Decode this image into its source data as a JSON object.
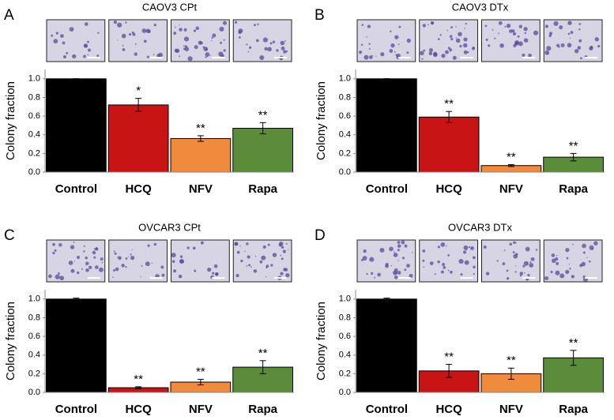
{
  "chart_data": [
    {
      "type": "bar",
      "label": "A",
      "title": "CAOV3 CPt",
      "ylabel": "Colony fraction",
      "categories": [
        "Control",
        "HCQ",
        "NFV",
        "Rapa"
      ],
      "values": [
        1.0,
        0.72,
        0.36,
        0.47
      ],
      "errors": [
        0,
        0.07,
        0.03,
        0.06
      ],
      "annotations": [
        null,
        "*",
        "**",
        "**"
      ],
      "colors": [
        "#000000",
        "#c81414",
        "#f08a3c",
        "#5b8c3a"
      ],
      "ylim": [
        0,
        1.1
      ],
      "yticks": [
        {
          "value": 0,
          "label": "0.0"
        },
        {
          "value": 0.2,
          "label": "0.2"
        },
        {
          "value": 0.4,
          "label": "0.4"
        },
        {
          "value": 0.6,
          "label": "0.6"
        },
        {
          "value": 0.8,
          "label": "0.8"
        },
        {
          "value": 1,
          "label": "1.0"
        }
      ]
    },
    {
      "type": "bar",
      "label": "B",
      "title": "CAOV3 DTx",
      "ylabel": "Colony fraction",
      "categories": [
        "Control",
        "HCQ",
        "NFV",
        "Rapa"
      ],
      "values": [
        1.0,
        0.59,
        0.07,
        0.16
      ],
      "errors": [
        0,
        0.06,
        0.01,
        0.04
      ],
      "annotations": [
        null,
        "**",
        "**",
        "**"
      ],
      "colors": [
        "#000000",
        "#c81414",
        "#f08a3c",
        "#5b8c3a"
      ],
      "ylim": [
        0,
        1.1
      ],
      "yticks": [
        {
          "value": 0,
          "label": "0.0"
        },
        {
          "value": 0.2,
          "label": "0.2"
        },
        {
          "value": 0.4,
          "label": "0.4"
        },
        {
          "value": 0.6,
          "label": "0.6"
        },
        {
          "value": 0.8,
          "label": "0.8"
        },
        {
          "value": 1,
          "label": "1.0"
        }
      ]
    },
    {
      "type": "bar",
      "label": "C",
      "title": "OVCAR3 CPt",
      "ylabel": "Colony fraction",
      "categories": [
        "Control",
        "HCQ",
        "NFV",
        "Rapa"
      ],
      "values": [
        1.0,
        0.05,
        0.11,
        0.27
      ],
      "errors": [
        0.01,
        0.01,
        0.03,
        0.07
      ],
      "annotations": [
        null,
        "**",
        "**",
        "**"
      ],
      "colors": [
        "#000000",
        "#c81414",
        "#f08a3c",
        "#5b8c3a"
      ],
      "ylim": [
        0,
        1.1
      ],
      "yticks": [
        {
          "value": 0,
          "label": "0.0"
        },
        {
          "value": 0.2,
          "label": "0.2"
        },
        {
          "value": 0.4,
          "label": "0.4"
        },
        {
          "value": 0.6,
          "label": "0.6"
        },
        {
          "value": 0.8,
          "label": "0.8"
        },
        {
          "value": 1,
          "label": "1.0"
        }
      ]
    },
    {
      "type": "bar",
      "label": "D",
      "title": "OVCAR3 DTx",
      "ylabel": "Colony fraction",
      "categories": [
        "Control",
        "HCQ",
        "NFV",
        "Rapa"
      ],
      "values": [
        1.0,
        0.23,
        0.2,
        0.37
      ],
      "errors": [
        0.01,
        0.07,
        0.06,
        0.08
      ],
      "annotations": [
        null,
        "**",
        "**",
        "**"
      ],
      "colors": [
        "#000000",
        "#c81414",
        "#f08a3c",
        "#5b8c3a"
      ],
      "ylim": [
        0,
        1.1
      ],
      "yticks": [
        {
          "value": 0,
          "label": "0.0"
        },
        {
          "value": 0.2,
          "label": "0.2"
        },
        {
          "value": 0.4,
          "label": "0.4"
        },
        {
          "value": 0.6,
          "label": "0.6"
        },
        {
          "value": 0.8,
          "label": "0.8"
        },
        {
          "value": 1,
          "label": "1.0"
        }
      ]
    }
  ]
}
